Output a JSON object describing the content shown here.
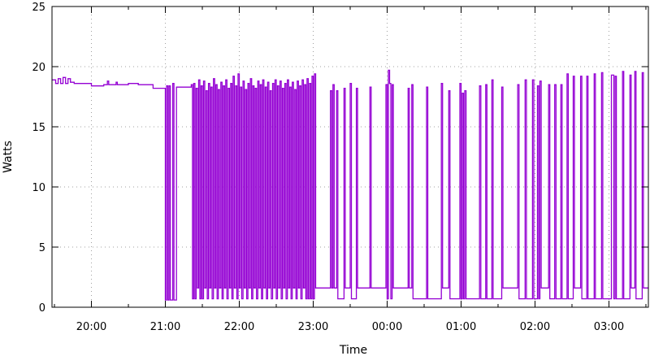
{
  "chart_data": {
    "type": "line",
    "title": "",
    "xlabel": "Time",
    "ylabel": "Watts",
    "xlim": [
      "19:28",
      "03:32"
    ],
    "ylim": [
      0,
      25
    ],
    "xticks": [
      "20:00",
      "21:00",
      "22:00",
      "23:00",
      "00:00",
      "01:00",
      "02:00",
      "03:00"
    ],
    "yticks": [
      0,
      5,
      10,
      15,
      20,
      25
    ],
    "grid": true,
    "line_style": "steps",
    "color": "#9400d3",
    "series": [
      {
        "points": [
          [
            "19:28",
            18.9
          ],
          [
            "19:31",
            18.6
          ],
          [
            "19:33",
            19.0
          ],
          [
            "19:35",
            18.6
          ],
          [
            "19:37",
            19.1
          ],
          [
            "19:39",
            18.6
          ],
          [
            "19:41",
            19.0
          ],
          [
            "19:43",
            18.7
          ],
          [
            "19:46",
            18.6
          ],
          [
            "20:00",
            18.4
          ],
          [
            "20:10",
            18.5
          ],
          [
            "20:13",
            18.8
          ],
          [
            "20:14",
            18.5
          ],
          [
            "20:20",
            18.7
          ],
          [
            "20:21",
            18.5
          ],
          [
            "20:30",
            18.6
          ],
          [
            "20:38",
            18.5
          ],
          [
            "20:50",
            18.2
          ],
          [
            "21:00",
            0.6
          ],
          [
            "21:01",
            18.4
          ],
          [
            "21:02",
            0.6
          ],
          [
            "21:03",
            18.4
          ],
          [
            "21:04",
            0.6
          ],
          [
            "21:06",
            18.6
          ],
          [
            "21:07",
            0.6
          ],
          [
            "21:09",
            18.3
          ],
          [
            "21:21",
            18.5
          ],
          [
            "21:22",
            0.7
          ],
          [
            "21:23",
            18.6
          ],
          [
            "21:24",
            0.7
          ],
          [
            "21:25",
            18.2
          ],
          [
            "21:26",
            1.6
          ],
          [
            "21:27",
            18.9
          ],
          [
            "21:28",
            0.7
          ],
          [
            "21:29",
            18.4
          ],
          [
            "21:30",
            0.7
          ],
          [
            "21:31",
            18.8
          ],
          [
            "21:32",
            1.6
          ],
          [
            "21:33",
            18.0
          ],
          [
            "21:34",
            0.7
          ],
          [
            "21:35",
            18.6
          ],
          [
            "21:36",
            1.6
          ],
          [
            "21:37",
            18.3
          ],
          [
            "21:38",
            0.7
          ],
          [
            "21:39",
            19.0
          ],
          [
            "21:40",
            1.6
          ],
          [
            "21:41",
            18.5
          ],
          [
            "21:42",
            0.7
          ],
          [
            "21:43",
            18.1
          ],
          [
            "21:44",
            1.6
          ],
          [
            "21:45",
            18.7
          ],
          [
            "21:46",
            0.7
          ],
          [
            "21:47",
            18.4
          ],
          [
            "21:48",
            1.6
          ],
          [
            "21:49",
            18.9
          ],
          [
            "21:50",
            0.7
          ],
          [
            "21:51",
            18.2
          ],
          [
            "21:52",
            1.6
          ],
          [
            "21:53",
            18.6
          ],
          [
            "21:54",
            0.7
          ],
          [
            "21:55",
            19.2
          ],
          [
            "21:56",
            1.6
          ],
          [
            "21:57",
            18.4
          ],
          [
            "21:58",
            0.7
          ],
          [
            "21:59",
            19.4
          ],
          [
            "22:00",
            1.6
          ],
          [
            "22:01",
            18.3
          ],
          [
            "22:02",
            0.7
          ],
          [
            "22:03",
            18.8
          ],
          [
            "22:04",
            1.6
          ],
          [
            "22:05",
            18.1
          ],
          [
            "22:06",
            0.7
          ],
          [
            "22:07",
            18.6
          ],
          [
            "22:08",
            1.6
          ],
          [
            "22:09",
            19.0
          ],
          [
            "22:10",
            0.7
          ],
          [
            "22:11",
            18.4
          ],
          [
            "22:12",
            1.6
          ],
          [
            "22:13",
            18.2
          ],
          [
            "22:14",
            0.7
          ],
          [
            "22:15",
            18.8
          ],
          [
            "22:16",
            1.6
          ],
          [
            "22:17",
            18.5
          ],
          [
            "22:18",
            0.7
          ],
          [
            "22:19",
            18.9
          ],
          [
            "22:20",
            1.6
          ],
          [
            "22:21",
            18.3
          ],
          [
            "22:22",
            0.7
          ],
          [
            "22:23",
            18.7
          ],
          [
            "22:24",
            1.6
          ],
          [
            "22:25",
            18.0
          ],
          [
            "22:26",
            0.7
          ],
          [
            "22:27",
            18.6
          ],
          [
            "22:28",
            1.6
          ],
          [
            "22:29",
            18.9
          ],
          [
            "22:30",
            0.7
          ],
          [
            "22:31",
            18.4
          ],
          [
            "22:32",
            1.6
          ],
          [
            "22:33",
            18.8
          ],
          [
            "22:34",
            0.7
          ],
          [
            "22:35",
            18.2
          ],
          [
            "22:36",
            1.6
          ],
          [
            "22:37",
            18.6
          ],
          [
            "22:38",
            0.7
          ],
          [
            "22:39",
            18.9
          ],
          [
            "22:40",
            1.6
          ],
          [
            "22:41",
            18.3
          ],
          [
            "22:42",
            0.7
          ],
          [
            "22:43",
            18.7
          ],
          [
            "22:44",
            1.6
          ],
          [
            "22:45",
            18.1
          ],
          [
            "22:46",
            0.7
          ],
          [
            "22:47",
            18.8
          ],
          [
            "22:48",
            1.6
          ],
          [
            "22:49",
            18.4
          ],
          [
            "22:50",
            0.7
          ],
          [
            "22:51",
            18.9
          ],
          [
            "22:52",
            1.6
          ],
          [
            "22:53",
            18.5
          ],
          [
            "22:54",
            0.7
          ],
          [
            "22:55",
            19.0
          ],
          [
            "22:56",
            0.7
          ],
          [
            "22:57",
            18.6
          ],
          [
            "22:58",
            0.7
          ],
          [
            "22:59",
            19.2
          ],
          [
            "23:00",
            0.7
          ],
          [
            "23:01",
            19.4
          ],
          [
            "23:02",
            1.6
          ],
          [
            "23:14",
            18.0
          ],
          [
            "23:15",
            1.6
          ],
          [
            "23:16",
            18.5
          ],
          [
            "23:17",
            1.6
          ],
          [
            "23:19",
            18.0
          ],
          [
            "23:20",
            0.7
          ],
          [
            "23:25",
            18.2
          ],
          [
            "23:26",
            1.6
          ],
          [
            "23:30",
            18.6
          ],
          [
            "23:31",
            0.7
          ],
          [
            "23:35",
            18.2
          ],
          [
            "23:36",
            1.6
          ],
          [
            "23:46",
            18.3
          ],
          [
            "23:47",
            1.6
          ],
          [
            "23:59",
            18.5
          ],
          [
            "00:00",
            0.7
          ],
          [
            "00:01",
            19.7
          ],
          [
            "00:02",
            18.6
          ],
          [
            "00:03",
            0.7
          ],
          [
            "00:04",
            18.5
          ],
          [
            "00:05",
            1.6
          ],
          [
            "00:17",
            18.2
          ],
          [
            "00:18",
            1.6
          ],
          [
            "00:20",
            18.5
          ],
          [
            "00:21",
            0.7
          ],
          [
            "00:32",
            18.3
          ],
          [
            "00:33",
            0.7
          ],
          [
            "00:44",
            18.6
          ],
          [
            "00:45",
            1.6
          ],
          [
            "00:50",
            18.0
          ],
          [
            "00:51",
            0.7
          ],
          [
            "00:59",
            18.6
          ],
          [
            "01:00",
            0.7
          ],
          [
            "01:01",
            17.8
          ],
          [
            "01:02",
            0.7
          ],
          [
            "01:03",
            18.0
          ],
          [
            "01:04",
            0.7
          ],
          [
            "01:15",
            18.4
          ],
          [
            "01:16",
            0.7
          ],
          [
            "01:20",
            18.5
          ],
          [
            "01:21",
            0.7
          ],
          [
            "01:25",
            18.9
          ],
          [
            "01:26",
            0.7
          ],
          [
            "01:33",
            18.3
          ],
          [
            "01:34",
            1.6
          ],
          [
            "01:46",
            18.5
          ],
          [
            "01:47",
            0.7
          ],
          [
            "01:52",
            18.9
          ],
          [
            "01:53",
            0.7
          ],
          [
            "01:58",
            18.9
          ],
          [
            "01:59",
            0.7
          ],
          [
            "02:02",
            18.4
          ],
          [
            "02:03",
            0.7
          ],
          [
            "02:04",
            18.8
          ],
          [
            "02:05",
            1.6
          ],
          [
            "02:11",
            18.5
          ],
          [
            "02:12",
            0.7
          ],
          [
            "02:16",
            18.5
          ],
          [
            "02:17",
            0.7
          ],
          [
            "02:21",
            18.5
          ],
          [
            "02:22",
            0.7
          ],
          [
            "02:26",
            19.4
          ],
          [
            "02:27",
            0.7
          ],
          [
            "02:31",
            19.2
          ],
          [
            "02:32",
            1.6
          ],
          [
            "02:37",
            19.2
          ],
          [
            "02:38",
            0.7
          ],
          [
            "02:42",
            19.2
          ],
          [
            "02:43",
            0.7
          ],
          [
            "02:48",
            19.4
          ],
          [
            "02:49",
            0.7
          ],
          [
            "02:54",
            19.5
          ],
          [
            "02:55",
            0.7
          ],
          [
            "03:02",
            19.3
          ],
          [
            "03:04",
            0.7
          ],
          [
            "03:05",
            19.2
          ],
          [
            "03:06",
            0.7
          ],
          [
            "03:11",
            19.6
          ],
          [
            "03:12",
            0.7
          ],
          [
            "03:17",
            19.3
          ],
          [
            "03:18",
            1.6
          ],
          [
            "03:21",
            19.6
          ],
          [
            "03:22",
            0.7
          ],
          [
            "03:27",
            19.5
          ],
          [
            "03:28",
            1.6
          ],
          [
            "03:32",
            1.6
          ]
        ]
      }
    ]
  }
}
